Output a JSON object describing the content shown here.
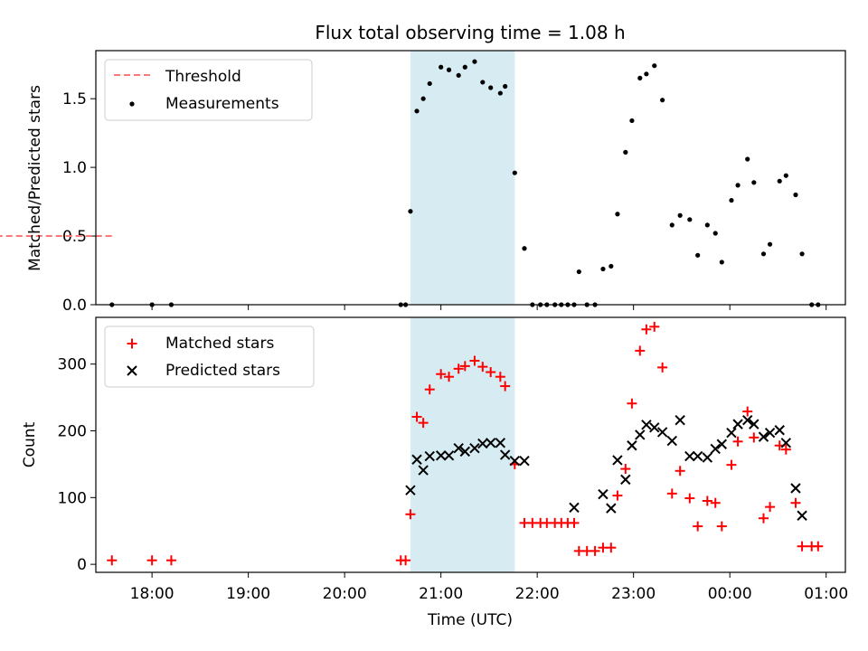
{
  "figure": {
    "title": "Flux total observing time = 1.08 h"
  },
  "colors": {
    "threshold": "#ff7777",
    "measurements": "#000000",
    "matched": "#ff0000",
    "predicted": "#000000",
    "shade": "#add8e6"
  },
  "chart_data": [
    {
      "type": "scatter",
      "title": "Flux total observing time = 1.08 h",
      "xlabel": "",
      "ylabel": "Matched/Predicted stars",
      "ylim": [
        0,
        1.85
      ],
      "yticks": [
        0.0,
        0.5,
        1.0,
        1.5
      ],
      "ytick_labels": [
        "0.0",
        "0.5",
        "1.0",
        "1.5"
      ],
      "legend_position": "top-left",
      "shaded_interval": [
        "20:41",
        "21:46"
      ],
      "series": [
        {
          "name": "Threshold",
          "kind": "dashed-line",
          "x": [
            "17:35",
            "00:57"
          ],
          "y": [
            0.5,
            0.5
          ]
        },
        {
          "name": "Measurements",
          "kind": "dot",
          "x": [
            "17:35",
            "18:00",
            "18:12",
            "20:35",
            "20:38",
            "20:41",
            "20:45",
            "20:49",
            "20:53",
            "21:00",
            "21:05",
            "21:11",
            "21:15",
            "21:21",
            "21:26",
            "21:31",
            "21:37",
            "21:40",
            "21:46",
            "21:52",
            "21:57",
            "22:02",
            "22:06",
            "22:11",
            "22:15",
            "22:19",
            "22:23",
            "22:26",
            "22:31",
            "22:36",
            "22:41",
            "22:46",
            "22:50",
            "22:55",
            "22:59",
            "23:04",
            "23:08",
            "23:13",
            "23:18",
            "23:24",
            "23:29",
            "23:35",
            "23:40",
            "23:46",
            "23:51",
            "23:55",
            "24:01",
            "24:05",
            "24:11",
            "24:15",
            "24:21",
            "24:25",
            "24:31",
            "24:35",
            "24:41",
            "24:45",
            "24:51",
            "24:55"
          ],
          "y": [
            0.0,
            0.0,
            0.0,
            0.0,
            0.0,
            0.68,
            1.41,
            1.5,
            1.61,
            1.73,
            1.71,
            1.67,
            1.73,
            1.77,
            1.62,
            1.58,
            1.54,
            1.59,
            0.96,
            0.41,
            0.0,
            0.0,
            0.0,
            0.0,
            0.0,
            0.0,
            0.0,
            0.24,
            0.0,
            0.0,
            0.26,
            0.28,
            0.66,
            1.11,
            1.34,
            1.65,
            1.68,
            1.74,
            1.49,
            0.58,
            0.65,
            0.62,
            0.36,
            0.58,
            0.52,
            0.31,
            0.76,
            0.87,
            1.06,
            0.89,
            0.37,
            0.44,
            0.9,
            0.94,
            0.8,
            0.37,
            0.0,
            0.0
          ]
        }
      ]
    },
    {
      "type": "scatter",
      "xlabel": "Time (UTC)",
      "ylabel": "Count",
      "ylim": [
        -12,
        370
      ],
      "yticks": [
        0,
        100,
        200,
        300
      ],
      "ytick_labels": [
        "0",
        "100",
        "200",
        "300"
      ],
      "xticks": [
        "18:00",
        "19:00",
        "20:00",
        "21:00",
        "22:00",
        "23:00",
        "24:00",
        "25:00"
      ],
      "xtick_labels": [
        "18:00",
        "19:00",
        "20:00",
        "21:00",
        "22:00",
        "23:00",
        "00:00",
        "01:00"
      ],
      "xlim": [
        "17:25",
        "25:12"
      ],
      "legend_position": "top-left",
      "shaded_interval": [
        "20:41",
        "21:46"
      ],
      "series": [
        {
          "name": "Matched stars",
          "kind": "plus",
          "x": [
            "17:35",
            "18:00",
            "18:12",
            "20:35",
            "20:38",
            "20:41",
            "20:45",
            "20:49",
            "20:53",
            "21:00",
            "21:05",
            "21:11",
            "21:15",
            "21:21",
            "21:26",
            "21:31",
            "21:37",
            "21:40",
            "21:46",
            "21:52",
            "21:57",
            "22:02",
            "22:06",
            "22:11",
            "22:15",
            "22:19",
            "22:23",
            "22:26",
            "22:31",
            "22:36",
            "22:41",
            "22:46",
            "22:50",
            "22:55",
            "22:59",
            "23:04",
            "23:08",
            "23:13",
            "23:18",
            "23:24",
            "23:29",
            "23:35",
            "23:40",
            "23:46",
            "23:51",
            "23:55",
            "24:01",
            "24:05",
            "24:11",
            "24:15",
            "24:21",
            "24:25",
            "24:31",
            "24:35",
            "24:41",
            "24:45",
            "24:51",
            "24:55"
          ],
          "y": [
            6,
            6,
            6,
            6,
            6,
            75,
            221,
            212,
            262,
            285,
            281,
            293,
            297,
            305,
            296,
            288,
            281,
            267,
            150,
            62,
            62,
            62,
            62,
            62,
            62,
            62,
            62,
            20,
            20,
            20,
            25,
            25,
            103,
            143,
            241,
            320,
            352,
            356,
            295,
            106,
            140,
            99,
            57,
            95,
            92,
            57,
            149,
            184,
            229,
            190,
            69,
            86,
            178,
            172,
            92,
            27,
            27,
            27
          ]
        },
        {
          "name": "Predicted stars",
          "kind": "x",
          "x": [
            "20:41",
            "20:45",
            "20:49",
            "20:53",
            "21:00",
            "21:05",
            "21:11",
            "21:15",
            "21:21",
            "21:26",
            "21:31",
            "21:37",
            "21:40",
            "21:46",
            "21:52",
            "22:23",
            "22:41",
            "22:46",
            "22:50",
            "22:55",
            "22:59",
            "23:04",
            "23:08",
            "23:13",
            "23:18",
            "23:24",
            "23:29",
            "23:35",
            "23:40",
            "23:46",
            "23:51",
            "23:55",
            "24:01",
            "24:05",
            "24:11",
            "24:15",
            "24:21",
            "24:25",
            "24:31",
            "24:35",
            "24:41",
            "24:45"
          ],
          "y": [
            111,
            157,
            141,
            162,
            163,
            163,
            174,
            169,
            174,
            181,
            182,
            182,
            164,
            155,
            155,
            85,
            105,
            84,
            156,
            127,
            178,
            194,
            209,
            205,
            198,
            185,
            216,
            162,
            162,
            160,
            173,
            180,
            197,
            210,
            216,
            210,
            191,
            197,
            201,
            182,
            114,
            73
          ]
        }
      ]
    }
  ]
}
